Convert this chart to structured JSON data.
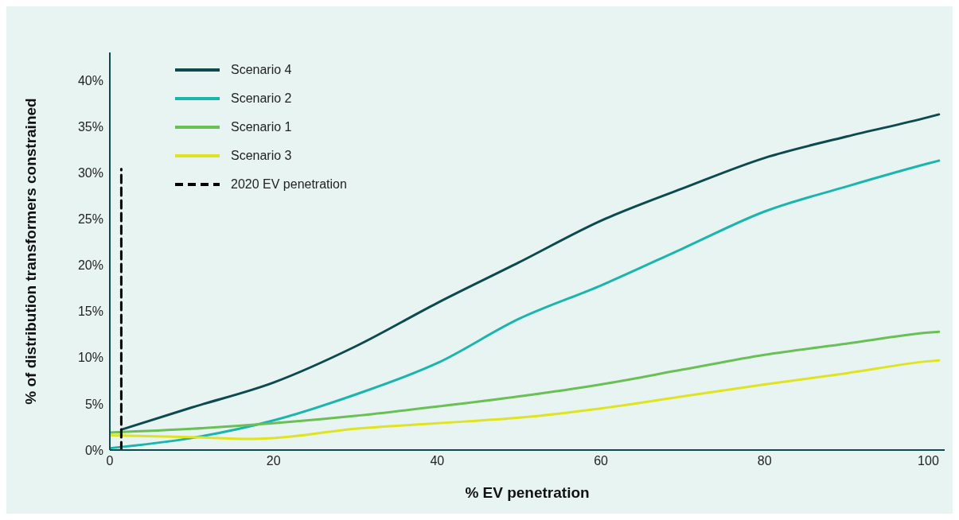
{
  "chart_data": {
    "type": "line",
    "xlabel": "% EV penetration",
    "ylabel": "% of distribution transformers constrained",
    "xlim": [
      0,
      102
    ],
    "xticks": [
      0,
      20,
      40,
      60,
      80,
      100
    ],
    "ylim": [
      0,
      43
    ],
    "yticks": [
      {
        "value": 0,
        "label": "0%"
      },
      {
        "value": 5,
        "label": "5%"
      },
      {
        "value": 10,
        "label": "10%"
      },
      {
        "value": 15,
        "label": "15%"
      },
      {
        "value": 20,
        "label": "20%"
      },
      {
        "value": 25,
        "label": "25%"
      },
      {
        "value": 30,
        "label": "30%"
      },
      {
        "value": 35,
        "label": "35%"
      },
      {
        "value": 40,
        "label": "40%"
      }
    ],
    "grid": false,
    "legend": "top left",
    "marker": "none",
    "series": [
      {
        "name": "Scenario 4",
        "color": "#0d4a4f",
        "x": [
          1.4,
          10,
          20,
          30,
          40,
          50,
          60,
          70,
          80,
          90,
          100,
          101.3
        ],
        "values": [
          2.2,
          4.6,
          7.3,
          11.2,
          15.9,
          20.3,
          24.8,
          28.3,
          31.6,
          33.9,
          36.0,
          36.3
        ]
      },
      {
        "name": "Scenario 2",
        "color": "#1bb5ad",
        "x": [
          0,
          10,
          20,
          30,
          40,
          50,
          60,
          70,
          80,
          90,
          100,
          101.3
        ],
        "values": [
          0.2,
          1.3,
          3.2,
          6.0,
          9.4,
          14.2,
          17.8,
          21.8,
          25.8,
          28.5,
          31.0,
          31.3
        ]
      },
      {
        "name": "Scenario 1",
        "color": "#6abf56",
        "x": [
          0,
          10,
          20,
          30,
          40,
          50,
          60,
          70,
          80,
          90,
          100,
          101.3
        ],
        "values": [
          1.9,
          2.3,
          2.9,
          3.7,
          4.7,
          5.8,
          7.1,
          8.7,
          10.3,
          11.5,
          12.7,
          12.8
        ]
      },
      {
        "name": "Scenario 3",
        "color": "#e0e31f",
        "x": [
          0,
          10,
          17,
          20,
          30,
          40,
          50,
          60,
          70,
          80,
          90,
          100,
          101.3
        ],
        "values": [
          1.6,
          1.4,
          1.2,
          1.3,
          2.3,
          2.9,
          3.5,
          4.5,
          5.8,
          7.1,
          8.3,
          9.6,
          9.7
        ]
      },
      {
        "name": "2020 EV penetration",
        "color": "#000000",
        "line_style": "dashed",
        "x": [
          1.4,
          1.4
        ],
        "values": [
          0,
          30.4
        ]
      }
    ]
  }
}
